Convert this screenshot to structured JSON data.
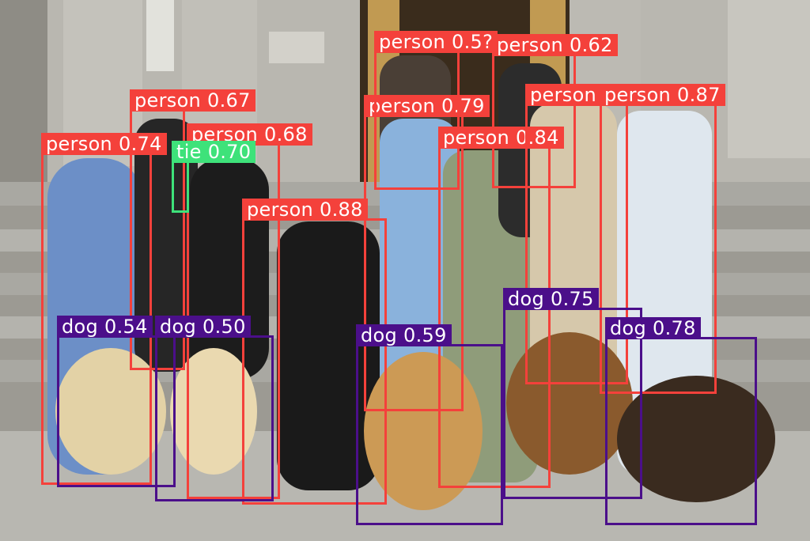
{
  "colors": {
    "person": "#f4413b",
    "dog": "#4b0f8a",
    "tie": "#3ee27a"
  },
  "detections": [
    {
      "class": "person",
      "label": "person",
      "score": "0.67"
    },
    {
      "class": "person",
      "label": "person",
      "score": "0.68"
    },
    {
      "class": "person",
      "label": "person",
      "score": "0.74"
    },
    {
      "class": "tie",
      "label": "tie",
      "score": "0.70"
    },
    {
      "class": "person",
      "label": "person",
      "score": "0.88"
    },
    {
      "class": "person",
      "label": "person",
      "score": "0.79"
    },
    {
      "class": "person",
      "label": "person",
      "score": "0.5?"
    },
    {
      "class": "person",
      "label": "person",
      "score": "0.62"
    },
    {
      "class": "person",
      "label": "person",
      "score": "0.84"
    },
    {
      "class": "person",
      "label": "person",
      "score": ""
    },
    {
      "class": "person",
      "label": "person",
      "score": "0.87"
    },
    {
      "class": "dog",
      "label": "dog",
      "score": "0.54"
    },
    {
      "class": "dog",
      "label": "dog",
      "score": "0.50"
    },
    {
      "class": "dog",
      "label": "dog",
      "score": "0.59"
    },
    {
      "class": "dog",
      "label": "dog",
      "score": "0.75"
    },
    {
      "class": "dog",
      "label": "dog",
      "score": "0.78"
    }
  ]
}
